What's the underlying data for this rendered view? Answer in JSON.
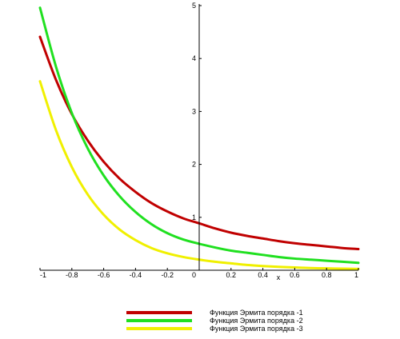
{
  "chart_data": {
    "type": "line",
    "xlabel": "x",
    "ylabel": "",
    "xlim": [
      -1,
      1
    ],
    "ylim": [
      0,
      5
    ],
    "x_ticks": [
      -1,
      -0.8,
      -0.6,
      -0.4,
      -0.2,
      0,
      0.2,
      0.4,
      0.6,
      0.8,
      1
    ],
    "x_tick_labels": [
      "-1",
      "-0.8",
      "-0.6",
      "-0.4",
      "-0.2",
      "0",
      "0.2",
      "0.4",
      "0.6",
      "0.8",
      "1"
    ],
    "y_ticks": [
      1,
      2,
      3,
      4,
      5
    ],
    "y_tick_labels": [
      "1",
      "2",
      "3",
      "4",
      "5"
    ],
    "grid": false,
    "legend_position": "bottom",
    "series": [
      {
        "name": "Функция Эрмита порядка -1",
        "color": "#c00000",
        "x": [
          -1,
          -0.9,
          -0.8,
          -0.7,
          -0.6,
          -0.5,
          -0.4,
          -0.3,
          -0.2,
          -0.1,
          0,
          0.1,
          0.2,
          0.3,
          0.4,
          0.5,
          0.6,
          0.7,
          0.8,
          0.9,
          1
        ],
        "y": [
          4.41,
          3.6,
          2.95,
          2.45,
          2.05,
          1.73,
          1.48,
          1.27,
          1.11,
          0.98,
          0.886,
          0.79,
          0.71,
          0.65,
          0.6,
          0.55,
          0.51,
          0.48,
          0.45,
          0.42,
          0.4
        ]
      },
      {
        "name": "Функция Эрмита порядка -2",
        "color": "#20e020",
        "x": [
          -1,
          -0.9,
          -0.8,
          -0.7,
          -0.6,
          -0.5,
          -0.4,
          -0.3,
          -0.2,
          -0.1,
          0,
          0.1,
          0.2,
          0.3,
          0.4,
          0.5,
          0.6,
          0.7,
          0.8,
          0.9,
          1
        ],
        "y": [
          4.96,
          3.85,
          2.97,
          2.3,
          1.79,
          1.4,
          1.1,
          0.87,
          0.7,
          0.58,
          0.5,
          0.43,
          0.37,
          0.33,
          0.29,
          0.25,
          0.22,
          0.2,
          0.18,
          0.16,
          0.14
        ]
      },
      {
        "name": "Функция Эрмита порядка -3",
        "color": "#f0f000",
        "x": [
          -1,
          -0.9,
          -0.8,
          -0.7,
          -0.6,
          -0.5,
          -0.4,
          -0.3,
          -0.2,
          -0.1,
          0,
          0.1,
          0.2,
          0.3,
          0.4,
          0.5,
          0.6,
          0.7,
          0.8,
          0.9,
          1
        ],
        "y": [
          3.57,
          2.65,
          1.95,
          1.43,
          1.05,
          0.77,
          0.57,
          0.42,
          0.32,
          0.25,
          0.2,
          0.16,
          0.13,
          0.1,
          0.08,
          0.065,
          0.052,
          0.042,
          0.035,
          0.03,
          0.025
        ]
      }
    ]
  }
}
